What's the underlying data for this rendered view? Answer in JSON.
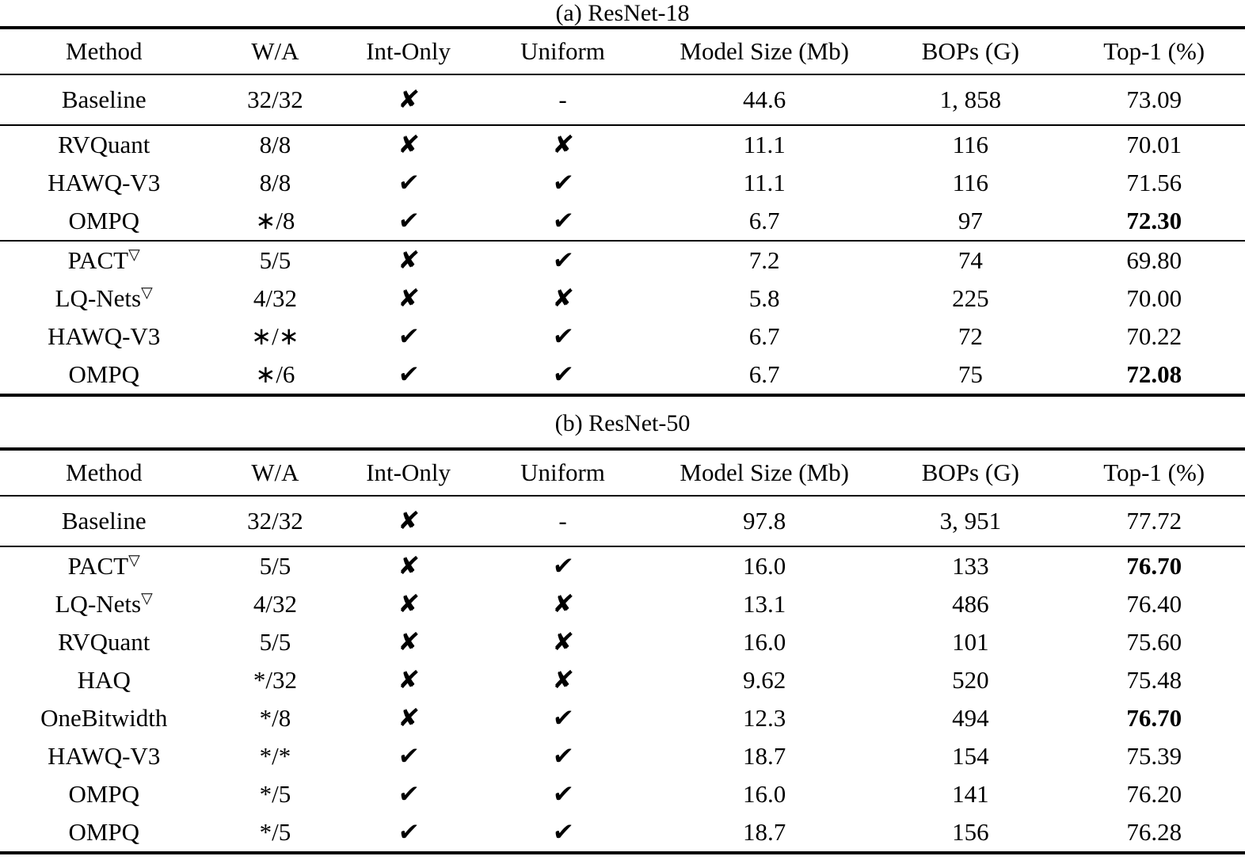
{
  "glyphs": {
    "check_icon": "✔",
    "cross_icon": "✘",
    "dash": "-"
  },
  "tables": [
    {
      "caption": "(a) ResNet-18",
      "headers": [
        "Method",
        "W/A",
        "Int-Only",
        "Uniform",
        "Model Size (Mb)",
        "BOPs (G)",
        "Top-1 (%)"
      ],
      "rows": [
        {
          "method": "Baseline",
          "wa": "32/32",
          "int_only": "cross",
          "uniform": "dash",
          "model_size": "44.6",
          "bops": "1, 858",
          "top1": "73.09",
          "top1_bold": false,
          "rule_above": false,
          "tall": true
        },
        {
          "method": "RVQuant",
          "wa": "8/8",
          "int_only": "cross",
          "uniform": "cross",
          "model_size": "11.1",
          "bops": "116",
          "top1": "70.01",
          "top1_bold": false,
          "rule_above": true,
          "tall": false
        },
        {
          "method": "HAWQ-V3",
          "wa": "8/8",
          "int_only": "check",
          "uniform": "check",
          "model_size": "11.1",
          "bops": "116",
          "top1": "71.56",
          "top1_bold": false,
          "rule_above": false,
          "tall": false
        },
        {
          "method": "OMPQ",
          "wa": "∗/8",
          "int_only": "check",
          "uniform": "check",
          "model_size": "6.7",
          "bops": "97",
          "top1": "72.30",
          "top1_bold": true,
          "rule_above": false,
          "tall": false
        },
        {
          "method": "PACT",
          "sup": "▽",
          "wa": "5/5",
          "int_only": "cross",
          "uniform": "check",
          "model_size": "7.2",
          "bops": "74",
          "top1": "69.80",
          "top1_bold": false,
          "rule_above": true,
          "tall": false
        },
        {
          "method": "LQ-Nets",
          "sup": "▽",
          "wa": "4/32",
          "int_only": "cross",
          "uniform": "cross",
          "model_size": "5.8",
          "bops": "225",
          "top1": "70.00",
          "top1_bold": false,
          "rule_above": false,
          "tall": false
        },
        {
          "method": "HAWQ-V3",
          "wa": "∗/∗",
          "int_only": "check",
          "uniform": "check",
          "model_size": "6.7",
          "bops": "72",
          "top1": "70.22",
          "top1_bold": false,
          "rule_above": false,
          "tall": false
        },
        {
          "method": "OMPQ",
          "wa": "∗/6",
          "int_only": "check",
          "uniform": "check",
          "model_size": "6.7",
          "bops": "75",
          "top1": "72.08",
          "top1_bold": true,
          "rule_above": false,
          "tall": false
        }
      ]
    },
    {
      "caption": "(b) ResNet-50",
      "headers": [
        "Method",
        "W/A",
        "Int-Only",
        "Uniform",
        "Model Size (Mb)",
        "BOPs (G)",
        "Top-1 (%)"
      ],
      "rows": [
        {
          "method": "Baseline",
          "wa": "32/32",
          "int_only": "cross",
          "uniform": "dash",
          "model_size": "97.8",
          "bops": "3, 951",
          "top1": "77.72",
          "top1_bold": false,
          "rule_above": false,
          "tall": true
        },
        {
          "method": "PACT",
          "sup": "▽",
          "wa": "5/5",
          "int_only": "cross",
          "uniform": "check",
          "model_size": "16.0",
          "bops": "133",
          "top1": "76.70",
          "top1_bold": true,
          "rule_above": true,
          "tall": false
        },
        {
          "method": "LQ-Nets",
          "sup": "▽",
          "wa": "4/32",
          "int_only": "cross",
          "uniform": "cross",
          "model_size": "13.1",
          "bops": "486",
          "top1": "76.40",
          "top1_bold": false,
          "rule_above": false,
          "tall": false
        },
        {
          "method": "RVQuant",
          "wa": "5/5",
          "int_only": "cross",
          "uniform": "cross",
          "model_size": "16.0",
          "bops": "101",
          "top1": "75.60",
          "top1_bold": false,
          "rule_above": false,
          "tall": false
        },
        {
          "method": "HAQ",
          "wa": "*/32",
          "int_only": "cross",
          "uniform": "cross",
          "model_size": "9.62",
          "bops": "520",
          "top1": "75.48",
          "top1_bold": false,
          "rule_above": false,
          "tall": false
        },
        {
          "method": "OneBitwidth",
          "wa": "*/8",
          "int_only": "cross",
          "uniform": "check",
          "model_size": "12.3",
          "bops": "494",
          "top1": "76.70",
          "top1_bold": true,
          "rule_above": false,
          "tall": false
        },
        {
          "method": "HAWQ-V3",
          "wa": "*/*",
          "int_only": "check",
          "uniform": "check",
          "model_size": "18.7",
          "bops": "154",
          "top1": "75.39",
          "top1_bold": false,
          "rule_above": false,
          "tall": false
        },
        {
          "method": "OMPQ",
          "wa": "*/5",
          "int_only": "check",
          "uniform": "check",
          "model_size": "16.0",
          "bops": "141",
          "top1": "76.20",
          "top1_bold": false,
          "rule_above": false,
          "tall": false
        },
        {
          "method": "OMPQ",
          "wa": "*/5",
          "int_only": "check",
          "uniform": "check",
          "model_size": "18.7",
          "bops": "156",
          "top1": "76.28",
          "top1_bold": false,
          "rule_above": false,
          "tall": false
        }
      ]
    }
  ]
}
